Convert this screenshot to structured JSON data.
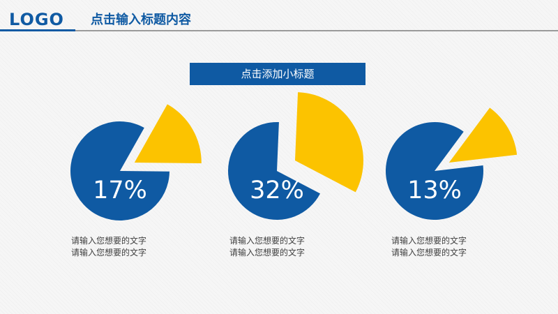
{
  "header": {
    "logo": "LOGO",
    "title": "点击输入标题内容"
  },
  "subtitle": "点击添加小标题",
  "colors": {
    "primary": "#0f5aa3",
    "accent": "#fcc300",
    "background": "#f6f6f6"
  },
  "chart_data": [
    {
      "type": "pie",
      "values": [
        17,
        83
      ],
      "labels": [
        "highlighted",
        "remainder"
      ],
      "data_label": "17%",
      "caption": [
        "请输入您想要的文字",
        "请输入您想要的文字"
      ]
    },
    {
      "type": "pie",
      "values": [
        32,
        68
      ],
      "labels": [
        "highlighted",
        "remainder"
      ],
      "data_label": "32%",
      "caption": [
        "请输入您想要的文字",
        "请输入您想要的文字"
      ]
    },
    {
      "type": "pie",
      "values": [
        13,
        87
      ],
      "labels": [
        "highlighted",
        "remainder"
      ],
      "data_label": "13%",
      "caption": [
        "请输入您想要的文字",
        "请输入您想要的文字"
      ]
    }
  ]
}
